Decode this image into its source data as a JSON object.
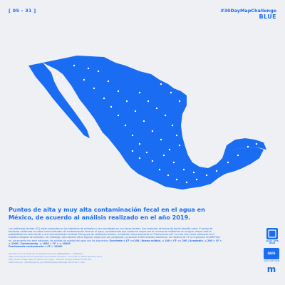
{
  "header": {
    "day_badge": "[ 05 - 31 ]",
    "hashtag": "#30DayMapChallenge",
    "theme": "BLUE"
  },
  "colors": {
    "accent": "#1a6cf2",
    "background": "#eef0f4",
    "dots": "#ffffff"
  },
  "map": {
    "region": "Mexico",
    "style": "solid blue landmass with white dots marking sampling sites"
  },
  "title": "Puntos de alta y muy alta contaminación fecal en el agua en México, de acuerdo al análisis realizado en el año 2019.",
  "description": "Las coliformes fecales (CF) están presentes en los intestinos de animales y son excretados en sus heces fecales. Son bacterias de forma de bacilo (bastón) color. El grupo de bacterias coliformes se utiliza como indicador de contaminación fecal en el agua, considerando que conforme mayor sea el número de coliformes en el agua, mayor será la probabilidad de estar frente a una contaminación reciente. Del grupo de coliformes fecales, la especie más prominente es \"Escherichia coli\"; la cual vive como comensal en el intestino delgado de animales. sin embargo, esta especie tiene algunas cepas que son peligrosas y provocan enfermedades diarreicas. Los valores de CF se organizan en NMP/100 ml, de acuerdo con este indicador, los niveles de calidad del agua son los siguientes:",
  "levels_line_1": "Excelente ≤ CF <=100  |  Buena calidad, ≤ 100 < CF <= 200  |  Aceptable, ≤ 200 < CF < = 1000  |  Contaminada, ≤ 1000 < CF < = 10000",
  "levels_line_2": "Fuertemente contaminada ≥ CF > 10000",
  "sources": [
    "Red Nacional de Medición de Calidad del Agua (RENAMECA) - CONAGUA",
    "https://www.gob.mx/conagua/articulos/calidad-del-agua - Consulta de datos abiertos 2019",
    "http://www.conabio.gob.mx/informacion/gis/ - División política estatal 1:250 000",
    "Elaborado por: @Tamaulipeca_Joe  #30DayMapChallenge 2021  Día 5: Azul"
  ],
  "logos": {
    "logo_a_text": "made with QGIS",
    "logo_b_text": "QGIS",
    "logo_b_sub": "made with QGIS",
    "logo_c_text": "m"
  }
}
